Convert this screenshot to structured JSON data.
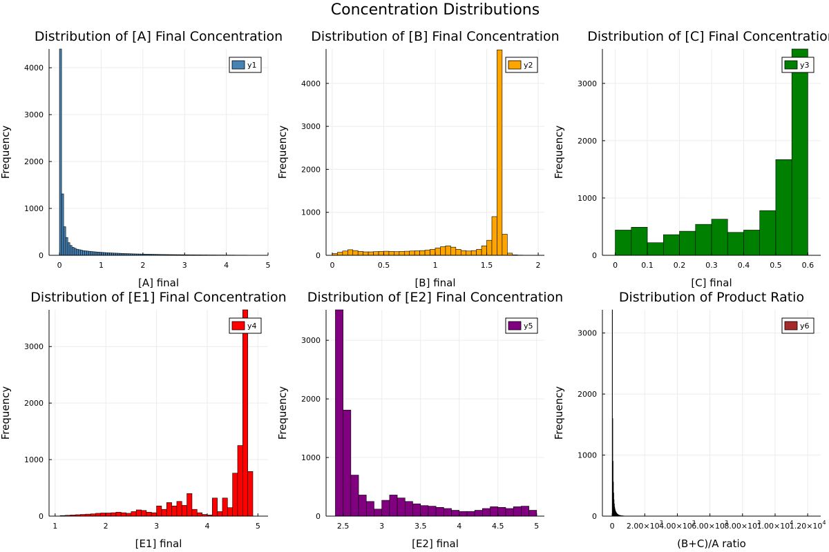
{
  "figure": {
    "title": "Concentration Distributions"
  },
  "chart_data": [
    {
      "type": "bar",
      "title": "Distribution of [A] Final Concentration",
      "xlabel": "[A] final",
      "ylabel": "Frequency",
      "xlim": [
        -0.25,
        5.0
      ],
      "ylim": [
        0,
        4400
      ],
      "xticks": [
        0,
        1,
        2,
        3,
        4,
        5
      ],
      "yticks": [
        0,
        1000,
        2000,
        3000,
        4000
      ],
      "grid": true,
      "legend_position": "top-right",
      "color": "#4682b4",
      "series": [
        {
          "name": "y1",
          "bin_start": 0,
          "bin_width": 0.05,
          "values": [
            4400,
            1310,
            610,
            380,
            270,
            210,
            170,
            150,
            130,
            120,
            110,
            100,
            95,
            90,
            85,
            80,
            76,
            72,
            68,
            65,
            62,
            59,
            56,
            54,
            51,
            49,
            47,
            45,
            43,
            41,
            39,
            37,
            36,
            34,
            33,
            31,
            30,
            29,
            28,
            27,
            26,
            25,
            24,
            23,
            22,
            21,
            20,
            19,
            18,
            17,
            17,
            16,
            15,
            15,
            14,
            14,
            13,
            13,
            12,
            12,
            11,
            11,
            10,
            10,
            10,
            9,
            9,
            9,
            8,
            8,
            8,
            7,
            7,
            7,
            7,
            6,
            6,
            6,
            6,
            5,
            5,
            5,
            5,
            5,
            4,
            4,
            4,
            4,
            4,
            4,
            3,
            3,
            3,
            3,
            3,
            3
          ]
        }
      ]
    },
    {
      "type": "bar",
      "title": "Distribution of [B] Final Concentration",
      "xlabel": "[B] final",
      "ylabel": "Frequency",
      "xlim": [
        -0.06,
        2.06
      ],
      "ylim": [
        0,
        4800
      ],
      "xticks": [
        0.0,
        0.5,
        1.0,
        1.5,
        2.0
      ],
      "yticks": [
        0,
        1000,
        2000,
        3000,
        4000
      ],
      "grid": true,
      "legend_position": "top-right",
      "color": "#ffa500",
      "series": [
        {
          "name": "y2",
          "bin_start": 0,
          "bin_width": 0.05,
          "values": [
            40,
            70,
            100,
            130,
            110,
            90,
            80,
            80,
            85,
            90,
            95,
            90,
            85,
            90,
            95,
            100,
            105,
            110,
            120,
            140,
            170,
            200,
            220,
            190,
            140,
            110,
            100,
            110,
            140,
            220,
            350,
            900,
            4780,
            490,
            50,
            10,
            5,
            3,
            2,
            1
          ]
        }
      ]
    },
    {
      "type": "bar",
      "title": "Distribution of [C] Final Concentration",
      "xlabel": "[C] final",
      "ylabel": "Frequency",
      "xlim": [
        -0.04,
        0.64
      ],
      "ylim": [
        0,
        3600
      ],
      "xticks": [
        0.0,
        0.1,
        0.2,
        0.3,
        0.4,
        0.5,
        0.6
      ],
      "yticks": [
        0,
        1000,
        2000,
        3000
      ],
      "grid": true,
      "legend_position": "top-right",
      "color": "#008000",
      "series": [
        {
          "name": "y3",
          "bin_start": 0,
          "bin_width": 0.05,
          "values": [
            440,
            490,
            220,
            360,
            420,
            540,
            630,
            400,
            440,
            780,
            1670,
            3600
          ]
        }
      ]
    },
    {
      "type": "bar",
      "title": "Distribution of [E1] Final Concentration",
      "xlabel": "[E1] final",
      "ylabel": "Frequency",
      "xlim": [
        0.88,
        5.2
      ],
      "ylim": [
        0,
        3650
      ],
      "xticks": [
        1,
        2,
        3,
        4,
        5
      ],
      "yticks": [
        0,
        1000,
        2000,
        3000
      ],
      "grid": true,
      "legend_position": "top-right",
      "color": "#ff0000",
      "series": [
        {
          "name": "y4",
          "bin_start": 1.1,
          "bin_width": 0.1,
          "values": [
            10,
            15,
            20,
            25,
            30,
            35,
            40,
            50,
            55,
            55,
            60,
            70,
            60,
            50,
            80,
            110,
            100,
            70,
            60,
            180,
            120,
            240,
            180,
            260,
            190,
            400,
            120,
            60,
            30,
            20,
            320,
            80,
            320,
            150,
            760,
            1250,
            3650,
            790
          ]
        }
      ]
    },
    {
      "type": "bar",
      "title": "Distribution of [E2] Final Concentration",
      "xlabel": "[E2] final",
      "ylabel": "Frequency",
      "xlim": [
        2.28,
        5.1
      ],
      "ylim": [
        0,
        3520
      ],
      "xticks": [
        2.5,
        3.0,
        3.5,
        4.0,
        4.5,
        5.0
      ],
      "yticks": [
        0,
        1000,
        2000,
        3000
      ],
      "grid": true,
      "legend_position": "top-right",
      "color": "#800080",
      "series": [
        {
          "name": "y5",
          "bin_start": 2.4,
          "bin_width": 0.1,
          "values": [
            3520,
            1810,
            700,
            360,
            250,
            120,
            270,
            360,
            310,
            250,
            210,
            180,
            170,
            150,
            130,
            100,
            80,
            80,
            100,
            130,
            160,
            150,
            130,
            160,
            170,
            100
          ]
        }
      ]
    },
    {
      "type": "bar",
      "title": "Distribution of Product Ratio",
      "xlabel": "(B+C)/A ratio",
      "ylabel": "Frequency",
      "xlim": [
        -600,
        12800
      ],
      "ylim": [
        0,
        3380
      ],
      "xticks": [
        0,
        2000,
        4000,
        6000,
        8000,
        10000,
        12000
      ],
      "xtick_labels": [
        "0",
        "2.00×10",
        "4.00×10",
        "6.00×10",
        "8.00×10",
        "1.00×10",
        "1.20×10"
      ],
      "xtick_exponents": [
        "",
        "3",
        "3",
        "3",
        "3",
        "4",
        "4"
      ],
      "yticks": [
        0,
        1000,
        2000,
        3000
      ],
      "grid": true,
      "legend_position": "top-right",
      "color": "#a52a2a",
      "series": [
        {
          "name": "y6",
          "bin_start": 0,
          "bin_width": 20,
          "values": [
            3380,
            1600,
            900,
            560,
            380,
            270,
            200,
            150,
            120,
            95,
            80,
            68,
            58,
            50,
            43,
            37,
            32,
            28,
            24,
            21,
            18,
            16,
            14,
            12,
            11,
            10,
            9,
            8,
            7,
            6,
            5,
            5,
            4,
            4,
            3,
            3,
            3,
            2,
            2,
            2
          ]
        }
      ]
    }
  ]
}
